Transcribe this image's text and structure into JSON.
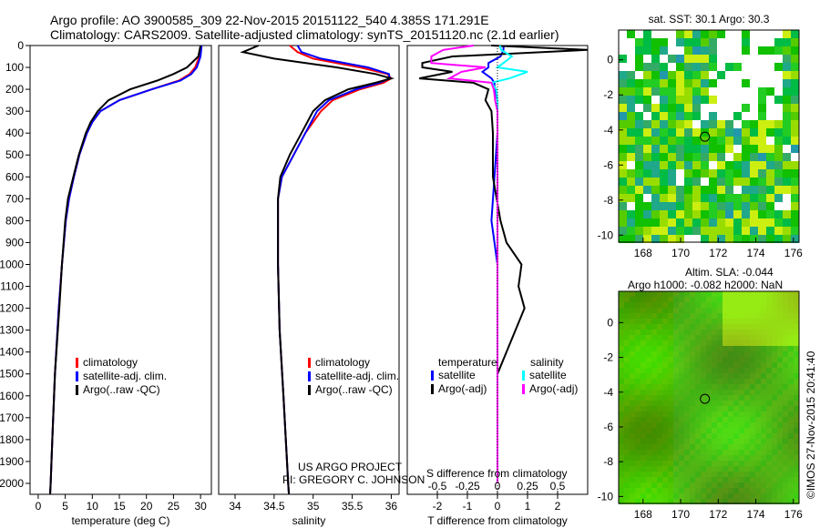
{
  "title_line1": "Argo profile: AO 3900585_309 22-Nov-2015 20151122_540 4.385S 171.291E",
  "title_line2": "Climatology: CARS2009. Satellite-adjusted climatology: synTS_20151120.nc (2.1d earlier)",
  "credit": "US ARGO PROJECT",
  "pi": "PI: GREGORY C. JOHNSON",
  "stamp": "©IMOS 27-Nov-2015 20:41:40",
  "colors": {
    "climatology": "#ff0000",
    "satellite": "#0000ff",
    "argo": "#000000",
    "sal_sat": "#00ffff",
    "sal_argo": "#ff00ff"
  },
  "chart_data": [
    {
      "type": "line",
      "name": "temperature",
      "xlabel": "temperature (deg C)",
      "xlim": [
        -1.5,
        32
      ],
      "xticks": [
        0,
        5,
        10,
        15,
        20,
        25,
        30
      ],
      "ylim": [
        2050,
        0
      ],
      "yticks": [
        0,
        100,
        200,
        300,
        400,
        500,
        600,
        700,
        800,
        900,
        1000,
        1100,
        1200,
        1300,
        1400,
        1500,
        1600,
        1700,
        1800,
        1900,
        2000
      ],
      "legend": [
        "climatology",
        "satellite-adj. clim.",
        "Argo(..raw -QC)"
      ],
      "depth": [
        0,
        50,
        100,
        130,
        160,
        200,
        250,
        300,
        350,
        400,
        500,
        600,
        700,
        800,
        1000,
        1200,
        1500,
        1800,
        2000,
        2050
      ],
      "series": [
        {
          "name": "climatology",
          "values": [
            30,
            29.8,
            29,
            28,
            26,
            21,
            15,
            11.5,
            10,
            9,
            7.6,
            6.6,
            5.7,
            5.1,
            4.4,
            3.8,
            3.1,
            2.6,
            2.3,
            2.2
          ]
        },
        {
          "name": "satellite-adj. clim.",
          "values": [
            30.2,
            30,
            29.3,
            28.3,
            26.3,
            21,
            15,
            11.5,
            10,
            9,
            7.6,
            6.6,
            5.7,
            5.1,
            4.4,
            3.8,
            3.1,
            2.6,
            2.3,
            2.2
          ]
        },
        {
          "name": "Argo(..raw -QC)",
          "values": [
            30,
            29.6,
            27.5,
            25,
            22,
            17,
            13,
            11,
            9.7,
            8.8,
            7.5,
            6.5,
            5.5,
            5,
            4.4,
            3.9,
            3.1,
            2.6,
            2.3,
            2.2
          ]
        }
      ]
    },
    {
      "type": "line",
      "name": "salinity",
      "xlabel": "salinity",
      "xlim": [
        33.79,
        36.1
      ],
      "xticks": [
        34,
        34.5,
        35,
        35.5,
        36
      ],
      "ylim": [
        2050,
        0
      ],
      "legend": [
        "climatology",
        "satellite-adj. clim.",
        "Argo(..raw -QC)"
      ],
      "depth": [
        0,
        30,
        60,
        100,
        130,
        150,
        170,
        200,
        250,
        300,
        400,
        500,
        600,
        700,
        1000,
        1300,
        1600,
        2000,
        2050
      ],
      "series": [
        {
          "name": "climatology",
          "values": [
            34.7,
            34.8,
            35.0,
            35.6,
            35.95,
            36.0,
            35.9,
            35.6,
            35.25,
            35.1,
            34.9,
            34.75,
            34.6,
            34.55,
            34.55,
            34.57,
            34.62,
            34.68,
            34.69
          ]
        },
        {
          "name": "satellite-adj. clim.",
          "values": [
            34.8,
            34.85,
            35.1,
            35.7,
            35.97,
            35.98,
            35.85,
            35.55,
            35.2,
            35.05,
            34.9,
            34.75,
            34.6,
            34.55,
            34.55,
            34.57,
            34.62,
            34.68,
            34.69
          ]
        },
        {
          "name": "Argo(..raw -QC)",
          "values": [
            34.3,
            34.1,
            34.5,
            35.3,
            35.8,
            36.0,
            35.8,
            35.45,
            35.15,
            35.0,
            34.85,
            34.7,
            34.58,
            34.55,
            34.55,
            34.57,
            34.62,
            34.68,
            34.69
          ]
        }
      ]
    },
    {
      "type": "line",
      "name": "difference",
      "xlabel": "T difference from climatology",
      "xlim": [
        -3,
        3
      ],
      "xticks": [
        -2,
        -1,
        0,
        1,
        2
      ],
      "x2label": "S difference from climatology",
      "x2ticks": [
        -0.5,
        -0.25,
        0,
        0.25,
        0.5
      ],
      "ylim": [
        2050,
        0
      ],
      "legend_t_heading": "temperature",
      "legend_s_heading": "salinity",
      "legend": [
        "satellite",
        "Argo(-adj)",
        "satellite",
        "Argo(-adj)"
      ],
      "depth": [
        0,
        20,
        50,
        80,
        100,
        120,
        150,
        170,
        200,
        250,
        300,
        400,
        600,
        800,
        900,
        1000,
        1100,
        1200,
        1500,
        2000
      ],
      "series": [
        {
          "name": "T satellite",
          "values": [
            0.2,
            0.2,
            0.1,
            -0.3,
            -0.3,
            -0.5,
            -0.2,
            -0.1,
            -0.1,
            0,
            0,
            0,
            -0.1,
            -0.2,
            -0.1,
            0,
            0,
            0,
            0,
            0
          ]
        },
        {
          "name": "T Argo(-adj)",
          "values": [
            -0.2,
            3,
            -1.5,
            -2.5,
            -2.5,
            -1.5,
            -2.6,
            -0.8,
            -0.3,
            -0.4,
            -0.2,
            -0.15,
            -0.15,
            0.1,
            0.3,
            0.8,
            0.7,
            0.9,
            0,
            0
          ]
        },
        {
          "name": "S satellite",
          "values": [
            0.02,
            0.03,
            0.12,
            0.05,
            0.0,
            0.25,
            0.1,
            -0.05,
            -0.01,
            0,
            0,
            0,
            0,
            0,
            0,
            0,
            0,
            0,
            0,
            0
          ]
        },
        {
          "name": "S Argo(-adj)",
          "values": [
            -0.2,
            -0.45,
            -0.55,
            -0.55,
            -0.1,
            -0.3,
            -0.4,
            -0.05,
            -0.03,
            -0.02,
            0,
            0,
            0,
            0,
            0,
            0,
            0,
            0,
            0,
            0
          ]
        }
      ]
    },
    {
      "type": "heatmap",
      "name": "sst-map",
      "title": "sat. SST: 30.1  Argo: 30.3",
      "xlim": [
        166.7,
        176.3
      ],
      "ylim": [
        -10.4,
        1.7
      ],
      "xticks": [
        168,
        170,
        172,
        174,
        176
      ],
      "yticks": [
        0,
        -2,
        -4,
        -6,
        -8,
        -10
      ],
      "argo_position": [
        171.291,
        -4.385
      ]
    },
    {
      "type": "heatmap",
      "name": "sla-map",
      "title": "Altim. SLA: -0.044",
      "subtitle": "Argo h1000: -0.082 h2000: NaN",
      "xlim": [
        166.7,
        176.3
      ],
      "ylim": [
        -10.4,
        1.8
      ],
      "xticks": [
        168,
        170,
        172,
        174,
        176
      ],
      "yticks": [
        0,
        -2,
        -4,
        -6,
        -8,
        -10
      ],
      "argo_position": [
        171.291,
        -4.385
      ]
    }
  ]
}
